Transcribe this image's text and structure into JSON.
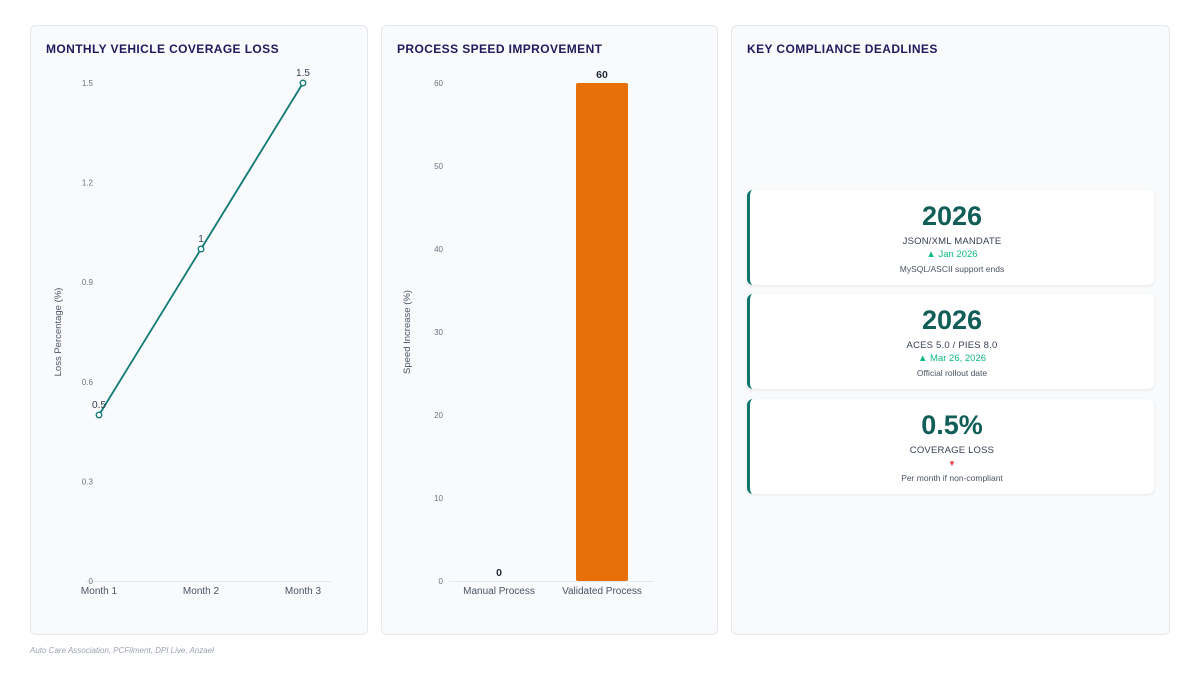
{
  "panels": {
    "line_title": "MONTHLY VEHICLE COVERAGE LOSS",
    "bar_title": "PROCESS SPEED IMPROVEMENT",
    "kpi_title": "KEY COMPLIANCE DEADLINES"
  },
  "chart_data": [
    {
      "type": "line",
      "title": "MONTHLY VEHICLE COVERAGE LOSS",
      "x": [
        "Month 1",
        "Month 2",
        "Month 3"
      ],
      "series": [
        {
          "values": [
            0.5,
            1,
            1.5
          ]
        }
      ],
      "data_labels": [
        "0.5",
        "1",
        "1.5"
      ],
      "ylabel": "Loss Percentage (%)",
      "ylim": [
        0,
        1.5
      ],
      "yticks": [
        0,
        0.3,
        0.6,
        0.9,
        1.2,
        1.5
      ],
      "ytick_labels": [
        "0",
        "0.3",
        "0.6",
        "0.9",
        "1.2",
        "1.5"
      ],
      "color": "#0f7a74",
      "grid": false
    },
    {
      "type": "bar",
      "title": "PROCESS SPEED IMPROVEMENT",
      "categories": [
        "Manual Process",
        "Validated Process"
      ],
      "values": [
        0,
        60
      ],
      "data_labels": [
        "0",
        "60"
      ],
      "ylabel": "Speed Increase (%)",
      "ylim": [
        0,
        60
      ],
      "yticks": [
        0,
        10,
        20,
        30,
        40,
        50,
        60
      ],
      "ytick_labels": [
        "0",
        "10",
        "20",
        "30",
        "40",
        "50",
        "60"
      ],
      "color": "#e8700a",
      "grid": false
    }
  ],
  "kpis": [
    {
      "value": "2026",
      "label": "JSON/XML MANDATE",
      "trend_icon": "▲",
      "trend_text": "Jan 2026",
      "direction": "up",
      "note": "MySQL/ASCII support ends"
    },
    {
      "value": "2026",
      "label": "ACES 5.0 / PIES 8.0",
      "trend_icon": "▲",
      "trend_text": "Mar 26, 2026",
      "direction": "up",
      "note": "Official rollout date"
    },
    {
      "value": "0.5%",
      "label": "COVERAGE LOSS",
      "trend_icon": "▼",
      "trend_text": "",
      "direction": "down",
      "note": "Per month if non-compliant"
    }
  ],
  "colors": {
    "accent": "#115e59",
    "up": "#10b981",
    "down": "#ef4444",
    "line": "#0f7a74",
    "bar": "#e8700a"
  },
  "source": "Auto Care Association, PCFilment, DPI Live, Anzael"
}
